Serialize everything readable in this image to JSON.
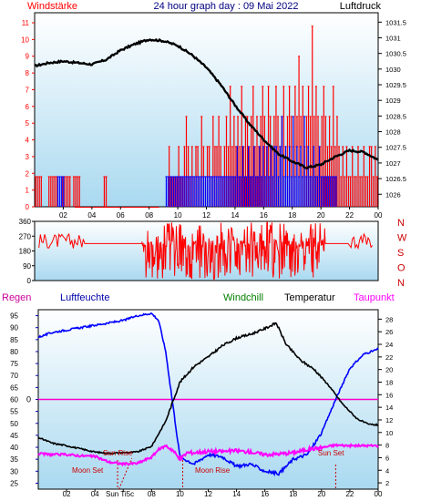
{
  "colors": {
    "wind": "#ff0000",
    "gust_blue": "#0000ff",
    "pressure": "#000000",
    "direction": "#ff0000",
    "humidity": "#0000ff",
    "temperature": "#000000",
    "dewpoint": "#ff00ff",
    "zero_line": "#ff00cc",
    "astro": "#cc0000",
    "windchill_label": "#008000",
    "bg_top": "#ffffff",
    "bg_bottom": "#a9d9f0"
  },
  "header": {
    "wind_label": "Windstärke",
    "title": "24 hour graph day : 09 Mai 2022",
    "pressure_label": "Luftdruck"
  },
  "direction_labels": [
    "N",
    "W",
    "S",
    "O",
    "N"
  ],
  "bottom_header": {
    "rain_label": "Regen",
    "humidity_label": "Luftfeuchte",
    "windchill_label": "Windchill",
    "temperature_label": "Temperatur",
    "dewpoint_label": "Taupunkt"
  },
  "astro_labels": {
    "moon_set": "Moon Set",
    "sun_rise": "Sun Rise",
    "moon_rise": "Moon Rise",
    "sun_set": "Sun Set",
    "sun_ticks": "Sun Ti5c"
  },
  "chart_data": [
    {
      "type": "bar",
      "name": "wind",
      "x_ticks": [
        "02",
        "04",
        "06",
        "08",
        "10",
        "12",
        "14",
        "16",
        "18",
        "20",
        "22",
        "00"
      ],
      "y_left_ticks": [
        "0",
        "1",
        "2",
        "3",
        "4",
        "5",
        "6",
        "7",
        "8",
        "9",
        "10",
        "11"
      ],
      "y_left_range": [
        0,
        11.6
      ],
      "y_right_ticks": [
        "1026",
        "1026.5",
        "1027",
        "1027.5",
        "1028",
        "1028.5",
        "1029",
        "1029.5",
        "1030",
        "1030.5",
        "1031",
        "1031.5"
      ],
      "y_right_range": [
        1025.6,
        1031.8
      ],
      "x_range": [
        0,
        24
      ],
      "series": [
        {
          "key": "pressure",
          "points": [
            [
              0,
              1030.1
            ],
            [
              1,
              1030.2
            ],
            [
              2,
              1030.25
            ],
            [
              3,
              1030.2
            ],
            [
              4,
              1030.15
            ],
            [
              5,
              1030.3
            ],
            [
              6,
              1030.6
            ],
            [
              7,
              1030.8
            ],
            [
              8,
              1030.95
            ],
            [
              9,
              1030.9
            ],
            [
              10,
              1030.75
            ],
            [
              11,
              1030.45
            ],
            [
              12,
              1030.05
            ],
            [
              13,
              1029.5
            ],
            [
              14,
              1028.85
            ],
            [
              15,
              1028.25
            ],
            [
              16,
              1027.75
            ],
            [
              17,
              1027.3
            ],
            [
              18,
              1027.05
            ],
            [
              19,
              1026.85
            ],
            [
              20,
              1026.95
            ],
            [
              21,
              1027.2
            ],
            [
              22,
              1027.4
            ],
            [
              23,
              1027.35
            ],
            [
              24,
              1027.1
            ]
          ]
        }
      ],
      "bars": [
        {
          "key": "wind",
          "values": [
            1.8,
            1.8,
            1.8,
            1.8,
            0,
            0,
            0,
            1.8,
            1.8,
            1.8,
            1.8,
            1.8,
            0,
            0,
            1.8,
            1.8,
            1.8,
            1.8,
            1.8,
            0,
            1.8,
            1.8,
            1.8,
            1.8,
            0,
            0,
            0,
            0,
            0,
            0,
            0,
            0,
            0,
            0,
            0,
            0,
            1.8,
            1.8,
            0,
            0,
            0,
            0,
            0,
            0,
            0,
            0,
            0,
            0,
            0,
            0,
            0,
            0,
            0,
            0,
            0,
            0,
            0,
            0,
            0,
            0,
            0,
            0,
            0,
            0,
            0,
            0,
            0,
            0,
            0,
            0,
            3.6,
            1.8,
            1.8,
            1.8,
            1.8,
            3.6,
            1.8,
            1.8,
            3.6,
            5.4,
            3.6,
            1.8,
            3.6,
            1.8,
            3.6,
            3.6,
            1.8,
            5.4,
            3.6,
            1.8,
            3.6,
            3.6,
            1.8,
            5.4,
            3.6,
            3.6,
            5.4,
            3.6,
            1.8,
            3.6,
            5.4,
            3.6,
            7.2,
            3.6,
            5.4,
            3.6,
            5.4,
            3.6,
            7.2,
            3.6,
            5.4,
            5.4,
            3.6,
            5.4,
            7.2,
            3.6,
            5.4,
            3.6,
            5.4,
            7.2,
            5.4,
            3.6,
            7.2,
            5.4,
            3.6,
            5.4,
            7.2,
            5.4,
            3.6,
            5.4,
            7.2,
            3.6,
            5.4,
            7.2,
            5.4,
            3.6,
            7.2,
            5.4,
            9,
            5.4,
            7.2,
            3.6,
            5.4,
            7.2,
            5.4,
            10.8,
            5.4,
            7.2,
            5.4,
            3.6,
            5.4,
            7.2,
            5.4,
            3.6,
            5.4,
            3.6,
            7.2,
            3.6,
            5.4,
            3.6,
            1.8,
            3.6,
            1.8,
            3.6,
            1.8,
            1.8,
            3.6,
            1.8,
            1.8,
            3.6,
            1.8,
            1.8,
            3.6,
            1.8,
            1.8,
            3.6,
            3.6,
            1.8,
            3.6,
            1.8
          ]
        },
        {
          "key": "gust_blue",
          "values": [
            0,
            0,
            0,
            0,
            0,
            0,
            0,
            0,
            0,
            0,
            0,
            0,
            1.8,
            1.8,
            1.8,
            1.8,
            0,
            0,
            0,
            0,
            0,
            0,
            0,
            0,
            0,
            0,
            0,
            0,
            0,
            0,
            0,
            0,
            0,
            0,
            0,
            0,
            0,
            0,
            0,
            0,
            0,
            0,
            0,
            0,
            0,
            0,
            0,
            0,
            0,
            0,
            0,
            0,
            0,
            0,
            0,
            0,
            0,
            0,
            0,
            0,
            0,
            0,
            0,
            0,
            0,
            0,
            0,
            0,
            0,
            0,
            1.8,
            1.8,
            1.8,
            1.8,
            1.8,
            1.8,
            1.8,
            1.8,
            1.8,
            1.8,
            1.8,
            1.8,
            1.8,
            1.8,
            1.8,
            1.8,
            1.8,
            1.8,
            1.8,
            1.8,
            1.8,
            1.8,
            1.8,
            1.8,
            1.8,
            1.8,
            1.8,
            1.8,
            1.8,
            1.8,
            1.8,
            1.8,
            1.8,
            1.8,
            1.8,
            1.8,
            1.8,
            1.8,
            3.6,
            1.8,
            1.8,
            3.6,
            1.8,
            1.8,
            3.6,
            1.8,
            1.8,
            3.6,
            1.8,
            1.8,
            3.6,
            1.8,
            3.6,
            1.8,
            3.6,
            1.8,
            3.6,
            1.8,
            3.6,
            3.6,
            1.8,
            3.6,
            5.4,
            1.8,
            3.6,
            1.8,
            3.6,
            1.8,
            5.4,
            1.8,
            3.6,
            1.8,
            3.6,
            1.8,
            5.4,
            1.8,
            3.6,
            1.8,
            1.8,
            3.6,
            1.8,
            1.8,
            3.6,
            1.8,
            1.8,
            1.8,
            1.8,
            1.8,
            1.8,
            1.8,
            1.8,
            1.8,
            0,
            0,
            0,
            0,
            0,
            0,
            0,
            0,
            0,
            0,
            0,
            0,
            0,
            0,
            0,
            0,
            0,
            0,
            0,
            0,
            0,
            0
          ]
        }
      ]
    },
    {
      "type": "line",
      "name": "direction",
      "x_range": [
        0,
        24
      ],
      "y_ticks": [
        "0",
        "90",
        "180",
        "270",
        "360"
      ],
      "y_range": [
        0,
        360
      ],
      "segments": [
        {
          "x": [
            0.3,
            3.5
          ],
          "level": 240,
          "noise": 45
        },
        {
          "x": [
            3.5,
            7.5
          ],
          "level": 225,
          "noise": 0
        },
        {
          "x": [
            7.5,
            20.3
          ],
          "level": 180,
          "noise": 180
        },
        {
          "x": [
            20.3,
            22.0
          ],
          "level": 225,
          "noise": 0
        },
        {
          "x": [
            22.0,
            23.7
          ],
          "level": 240,
          "noise": 45
        }
      ]
    },
    {
      "type": "line",
      "name": "climate",
      "x_ticks": [
        "02",
        "04",
        "06",
        "08",
        "10",
        "12",
        "14",
        "16",
        "18",
        "20",
        "22",
        "00"
      ],
      "x_range": [
        0,
        24
      ],
      "y_left_ticks": [
        "25",
        "30",
        "35",
        "40",
        "45",
        "50",
        "55",
        "60",
        "65",
        "70",
        "75",
        "80",
        "85",
        "90",
        "95"
      ],
      "y_left_range": [
        22.5,
        97.5
      ],
      "y_right_ticks": [
        "2",
        "4",
        "6",
        "8",
        "10",
        "12",
        "14",
        "16",
        "18",
        "20",
        "22",
        "24",
        "26",
        "28"
      ],
      "y_right_range": [
        1,
        29.5
      ],
      "rain_marker": "0",
      "rain_zero_level_pct": 60,
      "series": [
        {
          "key": "humidity",
          "points": [
            [
              0,
              86
            ],
            [
              1,
              88
            ],
            [
              2,
              89
            ],
            [
              3,
              90
            ],
            [
              4,
              91
            ],
            [
              5,
              92
            ],
            [
              6,
              93
            ],
            [
              7,
              95
            ],
            [
              8,
              96
            ],
            [
              8.5,
              93
            ],
            [
              9,
              80
            ],
            [
              9.5,
              58
            ],
            [
              10,
              36
            ],
            [
              11,
              33
            ],
            [
              12,
              37
            ],
            [
              13,
              36
            ],
            [
              14,
              32
            ],
            [
              15,
              33
            ],
            [
              16,
              30
            ],
            [
              17,
              29
            ],
            [
              18,
              35
            ],
            [
              19,
              37
            ],
            [
              20,
              46
            ],
            [
              21,
              60
            ],
            [
              22,
              73
            ],
            [
              23,
              79
            ],
            [
              24,
              81
            ]
          ]
        },
        {
          "key": "temperature",
          "points": [
            [
              0,
              9.2
            ],
            [
              1,
              8.3
            ],
            [
              2,
              7.9
            ],
            [
              3,
              7.4
            ],
            [
              4,
              6.9
            ],
            [
              5,
              6.7
            ],
            [
              6,
              6.8
            ],
            [
              7,
              6.9
            ],
            [
              8,
              7.8
            ],
            [
              9,
              11.8
            ],
            [
              10,
              18.0
            ],
            [
              11,
              20.5
            ],
            [
              12,
              22.0
            ],
            [
              13,
              23.8
            ],
            [
              14,
              25.0
            ],
            [
              15,
              25.6
            ],
            [
              16,
              26.5
            ],
            [
              16.8,
              27.4
            ],
            [
              17.5,
              24.0
            ],
            [
              18.5,
              21.5
            ],
            [
              19.5,
              20.0
            ],
            [
              20.5,
              17.5
            ],
            [
              21.5,
              14.5
            ],
            [
              22.5,
              12.2
            ],
            [
              23.3,
              11.3
            ],
            [
              24,
              11.2
            ]
          ]
        },
        {
          "key": "dewpoint",
          "points": [
            [
              0,
              6.6
            ],
            [
              1,
              6.5
            ],
            [
              2,
              6.5
            ],
            [
              3,
              6.3
            ],
            [
              4,
              6.2
            ],
            [
              5,
              5.3
            ],
            [
              6,
              5.0
            ],
            [
              7,
              5.1
            ],
            [
              8,
              6.1
            ],
            [
              8.5,
              7.3
            ],
            [
              9,
              7.9
            ],
            [
              9.5,
              7.2
            ],
            [
              10,
              5.7
            ],
            [
              10.5,
              6.8
            ],
            [
              11,
              6.8
            ],
            [
              12,
              7.0
            ],
            [
              13,
              7.0
            ],
            [
              14,
              7.1
            ],
            [
              15,
              6.9
            ],
            [
              16,
              6.5
            ],
            [
              17,
              6.6
            ],
            [
              18,
              6.8
            ],
            [
              19,
              7.3
            ],
            [
              20,
              7.6
            ],
            [
              21,
              8.0
            ],
            [
              22,
              7.9
            ],
            [
              23,
              7.9
            ],
            [
              24,
              7.9
            ]
          ]
        }
      ],
      "events_hours": {
        "moon_set": 5.6,
        "sun_rise": 5.7,
        "moon_rise": 10.2,
        "sun_set": 21.0
      }
    }
  ]
}
